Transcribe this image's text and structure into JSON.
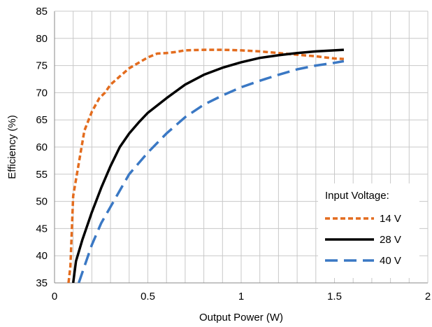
{
  "chart_data": {
    "type": "line",
    "title": "",
    "xlabel": "Output Power (W)",
    "ylabel": "Efficiency (%)",
    "xlim": [
      0,
      2
    ],
    "ylim": [
      35,
      85
    ],
    "xticks": [
      0,
      0.5,
      1,
      1.5,
      2
    ],
    "xtick_labels": [
      "0",
      "0.5",
      "1",
      "1.5",
      "2"
    ],
    "yticks": [
      35,
      40,
      45,
      50,
      55,
      60,
      65,
      70,
      75,
      80,
      85
    ],
    "ytick_labels": [
      "35",
      "40",
      "45",
      "50",
      "55",
      "60",
      "65",
      "70",
      "75",
      "80",
      "85"
    ],
    "x_minor_step": 0.1,
    "grid": true,
    "legend": {
      "title": "Input Voltage:",
      "placement": "bottom-right"
    },
    "series": [
      {
        "name": "14 V",
        "color": "#E36C1E",
        "style": "dotted",
        "x": [
          0.075,
          0.085,
          0.1,
          0.13,
          0.16,
          0.2,
          0.24,
          0.27,
          0.3,
          0.35,
          0.4,
          0.45,
          0.5,
          0.55,
          0.6,
          0.65,
          0.7,
          0.8,
          0.9,
          1.0,
          1.1,
          1.2,
          1.3,
          1.4,
          1.45,
          1.5,
          1.55
        ],
        "y": [
          35,
          38,
          51,
          57,
          63,
          66.5,
          69,
          70,
          71.5,
          73,
          74.5,
          75.5,
          76.5,
          77.2,
          77.3,
          77.5,
          77.8,
          77.9,
          77.9,
          77.8,
          77.6,
          77.3,
          77.0,
          76.7,
          76.5,
          76.3,
          76.2
        ]
      },
      {
        "name": "28 V",
        "color": "#000000",
        "style": "solid",
        "x": [
          0.1,
          0.115,
          0.15,
          0.2,
          0.25,
          0.3,
          0.35,
          0.4,
          0.45,
          0.5,
          0.6,
          0.7,
          0.8,
          0.9,
          1.0,
          1.1,
          1.2,
          1.3,
          1.4,
          1.5,
          1.55
        ],
        "y": [
          35,
          39,
          43,
          48,
          52.5,
          56.5,
          60,
          62.5,
          64.5,
          66.3,
          69,
          71.5,
          73.3,
          74.6,
          75.6,
          76.4,
          76.9,
          77.3,
          77.6,
          77.8,
          77.9
        ]
      },
      {
        "name": "40 V",
        "color": "#3A78C4",
        "style": "dashed",
        "x": [
          0.13,
          0.16,
          0.2,
          0.25,
          0.3,
          0.35,
          0.4,
          0.5,
          0.6,
          0.7,
          0.8,
          0.9,
          1.0,
          1.1,
          1.2,
          1.3,
          1.4,
          1.5,
          1.55
        ],
        "y": [
          35,
          38,
          42,
          46,
          49,
          52,
          55,
          59,
          62.5,
          65.5,
          67.8,
          69.5,
          71,
          72.2,
          73.3,
          74.3,
          75,
          75.5,
          75.8
        ]
      }
    ]
  }
}
